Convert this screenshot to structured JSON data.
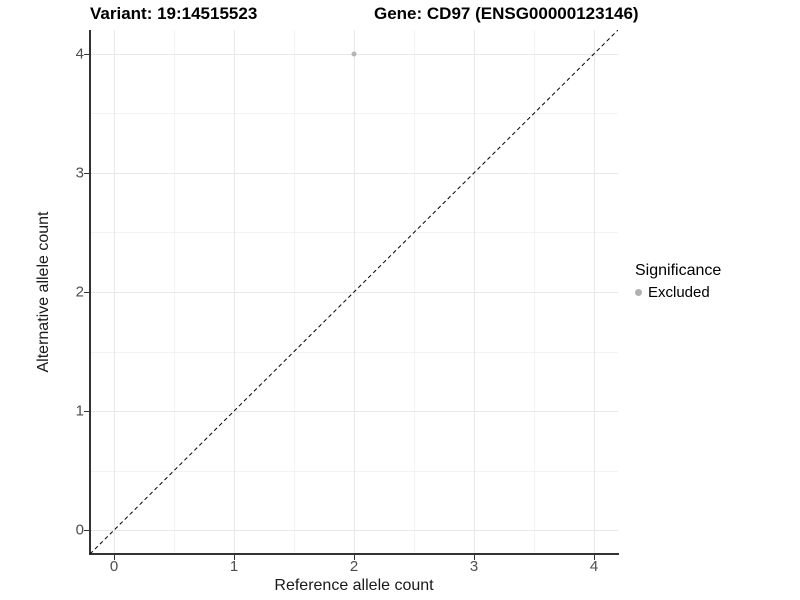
{
  "titles": {
    "variant": "Variant: 19:14515523",
    "gene": "Gene: CD97 (ENSG00000123146)"
  },
  "chart_data": {
    "type": "scatter",
    "title_left": "Variant: 19:14515523",
    "title_right": "Gene: CD97 (ENSG00000123146)",
    "xlabel": "Reference allele count",
    "ylabel": "Alternative allele count",
    "xlim": [
      -0.2,
      4.2
    ],
    "ylim": [
      -0.2,
      4.2
    ],
    "x_ticks": [
      0,
      1,
      2,
      3,
      4
    ],
    "y_ticks": [
      0,
      1,
      2,
      3,
      4
    ],
    "grid": "major+minor",
    "series": [
      {
        "name": "Excluded",
        "color": "#b5b5b5",
        "points": [
          {
            "x": 2,
            "y": 4
          }
        ]
      }
    ],
    "reference_line": {
      "type": "abline",
      "slope": 1,
      "intercept": 0,
      "style": "dashed",
      "color": "#000000"
    },
    "legend": {
      "title": "Significance",
      "position": "right",
      "items": [
        {
          "label": "Excluded",
          "color": "#b0b0b0"
        }
      ]
    }
  },
  "colors": {
    "background": "#ffffff",
    "grid_major": "#e8e8e8",
    "grid_minor": "#f3f3f3",
    "axis": "#333333",
    "tick_text": "#4d4d4d",
    "point": "#b5b5b5"
  }
}
